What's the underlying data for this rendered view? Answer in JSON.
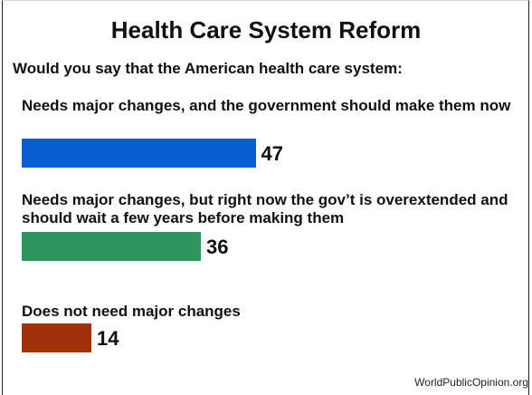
{
  "title": "Health Care System Reform",
  "question": "Would you say that the American health care system:",
  "source": "WorldPublicOpinion.org",
  "chart_data": {
    "type": "bar",
    "orientation": "horizontal",
    "title": "Health Care System Reform",
    "subtitle": "Would you say that the American health care system:",
    "categories": [
      "Needs major changes, and the government should make them now",
      "Needs major changes, but right now the gov’t is overextended and should wait a few years before making them",
      "Does not need major changes"
    ],
    "values": [
      47,
      36,
      14
    ],
    "colors": [
      "#0a5fd0",
      "#2e9460",
      "#a0320a"
    ],
    "xlim": [
      0,
      100
    ],
    "grid": false,
    "legend": "none"
  }
}
